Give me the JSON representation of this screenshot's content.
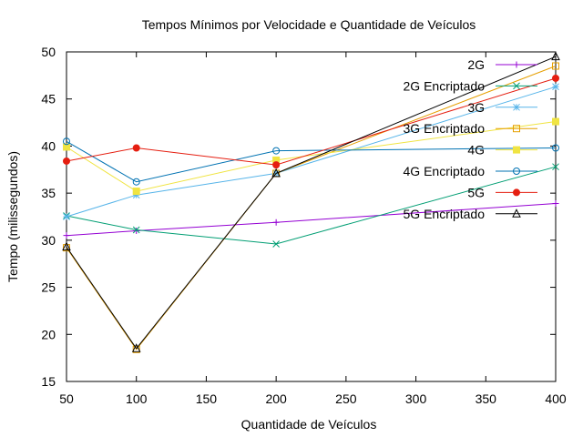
{
  "chart_data": {
    "type": "line",
    "title": "Tempos Mínimos por Velocidade e Quantidade de Veículos",
    "xlabel": "Quantidade de Veículos",
    "ylabel": "Tempo (milissegundos)",
    "xlim": [
      50,
      400
    ],
    "ylim": [
      15,
      50
    ],
    "xticks": [
      50,
      100,
      150,
      200,
      250,
      300,
      350,
      400
    ],
    "yticks": [
      15,
      20,
      25,
      30,
      35,
      40,
      45,
      50
    ],
    "grid": false,
    "legend_position": "top-right",
    "x": [
      50,
      100,
      200,
      400
    ],
    "series": [
      {
        "name": "2G",
        "color": "#9400d3",
        "marker": "plus",
        "values": [
          30.5,
          31.0,
          31.9,
          33.9
        ]
      },
      {
        "name": "2G Encriptado",
        "color": "#009e73",
        "marker": "cross",
        "values": [
          32.6,
          31.1,
          29.6,
          37.8
        ]
      },
      {
        "name": "3G",
        "color": "#56b4e9",
        "marker": "star",
        "values": [
          32.5,
          34.8,
          37.1,
          46.3
        ]
      },
      {
        "name": "3G Encriptado",
        "color": "#e69f00",
        "marker": "square-open",
        "values": [
          29.2,
          18.4,
          37.1,
          48.5
        ]
      },
      {
        "name": "4G",
        "color": "#f0e442",
        "marker": "square-filled",
        "values": [
          39.9,
          35.2,
          38.5,
          42.6
        ]
      },
      {
        "name": "4G Encriptado",
        "color": "#0072b2",
        "marker": "circle-open",
        "values": [
          40.5,
          36.2,
          39.5,
          39.8
        ]
      },
      {
        "name": "5G",
        "color": "#e51e10",
        "marker": "circle-filled",
        "values": [
          38.4,
          39.8,
          38.0,
          47.2
        ]
      },
      {
        "name": "5G Encriptado",
        "color": "#000000",
        "marker": "triangle-open",
        "values": [
          29.3,
          18.5,
          37.1,
          49.5
        ]
      }
    ]
  }
}
